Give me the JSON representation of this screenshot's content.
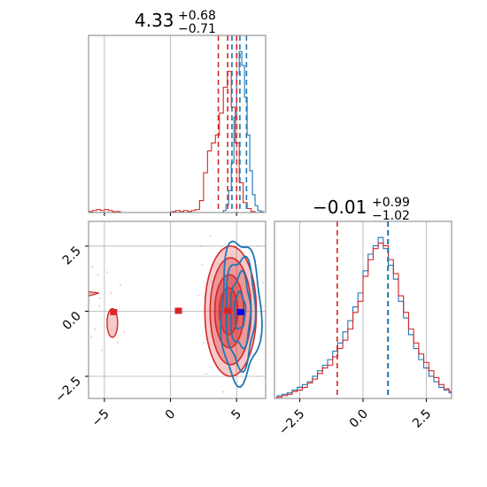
{
  "chart_data": {
    "type": "corner",
    "colors": {
      "red": "#d62728",
      "blue": "#1f77b4",
      "grid": "#b0b0b0",
      "axes": "#808080"
    },
    "panels": {
      "param0_hist": {
        "title": {
          "value": "4.33",
          "upper": "+0.68",
          "lower": "−0.71"
        },
        "xlim": [
          -6.2,
          7.2
        ],
        "grid_x": [
          -5,
          0,
          5
        ],
        "quantile_lines_red": [
          3.62,
          4.33,
          5.01
        ],
        "quantile_lines_blue": [
          4.65,
          5.25,
          5.75
        ],
        "red_bins": {
          "edges": [
            -6.2,
            -5.9,
            -5.6,
            -5.3,
            -5.0,
            -4.7,
            -4.4,
            -4.1,
            -3.8,
            -3.5,
            -3.2,
            -2.9,
            -2.6,
            -2.3,
            -2.0,
            -1.7,
            -1.4,
            -1.1,
            -0.8,
            -0.5,
            -0.2,
            0.1,
            0.4,
            0.7,
            1.0,
            1.3,
            1.6,
            1.9,
            2.2,
            2.5,
            2.8,
            3.1,
            3.4,
            3.7,
            4.0,
            4.3,
            4.6,
            4.9,
            5.2,
            5.5,
            5.8,
            6.1,
            6.4
          ],
          "counts": [
            1,
            2,
            3,
            2,
            3,
            2,
            1,
            1,
            0,
            0,
            0,
            0,
            0,
            0,
            0,
            0,
            0,
            0,
            0,
            0,
            0,
            1,
            2,
            1,
            2,
            1,
            2,
            3,
            12,
            40,
            62,
            70,
            78,
            100,
            126,
            142,
            106,
            70,
            30,
            10,
            4,
            1
          ]
        },
        "blue_bins": {
          "edges": [
            4.0,
            4.2,
            4.4,
            4.6,
            4.8,
            5.0,
            5.2,
            5.4,
            5.6,
            5.8,
            6.0,
            6.2,
            6.4,
            6.6,
            6.8,
            7.0
          ],
          "counts": [
            2,
            8,
            22,
            50,
            96,
            140,
            162,
            148,
            116,
            78,
            42,
            18,
            7,
            2,
            1
          ]
        }
      },
      "param1_hist": {
        "title": {
          "value": "−0.01",
          "upper": "+0.99",
          "lower": "−1.02"
        },
        "xlim": [
          -3.5,
          3.5
        ],
        "ticks": [
          -2.5,
          0.0,
          2.5
        ],
        "tick_labels": [
          "−2.5",
          "0.0",
          "2.5"
        ],
        "quantile_lines_red": [
          -1.02,
          0.98
        ],
        "quantile_lines_blue": [
          0.96
        ],
        "bin_edges_start": -3.4,
        "bin_width": 0.2,
        "red_counts": [
          1,
          2,
          3,
          5,
          6,
          8,
          11,
          14,
          18,
          22,
          24,
          30,
          36,
          42,
          50,
          62,
          70,
          88,
          100,
          108,
          112,
          110,
          100,
          90,
          74,
          62,
          50,
          40,
          32,
          26,
          20,
          15,
          10,
          7,
          5
        ],
        "blue_counts": [
          2,
          3,
          4,
          6,
          8,
          10,
          12,
          16,
          20,
          24,
          28,
          34,
          40,
          48,
          56,
          66,
          76,
          92,
          104,
          110,
          116,
          108,
          96,
          86,
          70,
          58,
          46,
          36,
          28,
          22,
          16,
          12,
          8,
          6,
          4
        ]
      },
      "scatter_2d": {
        "xlim": [
          -6.2,
          7.2
        ],
        "ylim": [
          -3.35,
          3.45
        ],
        "x_ticks": [
          -5,
          0,
          5
        ],
        "x_tick_labels": [
          "−5",
          "0",
          "5"
        ],
        "y_ticks": [
          -2.5,
          0.0,
          2.5
        ],
        "y_tick_labels": [
          "−2.5",
          "0.0",
          "2.5"
        ],
        "red_contours": [
          {
            "cx": 4.55,
            "cy": 0.0,
            "rx": 1.95,
            "ry": 2.5,
            "fill_opacity": 0.45
          },
          {
            "cx": 4.55,
            "cy": 0.0,
            "rx": 1.55,
            "ry": 2.05,
            "fill_opacity": 0.55
          },
          {
            "cx": 4.45,
            "cy": 0.0,
            "rx": 1.1,
            "ry": 1.4,
            "fill_opacity": 0.75
          },
          {
            "cx": 4.4,
            "cy": 0.0,
            "rx": 0.7,
            "ry": 0.9,
            "fill_opacity": 0.85
          }
        ],
        "red_island": {
          "cx": -4.4,
          "cy": -0.45,
          "rx": 0.4,
          "ry": 0.55
        },
        "red_sliver": {
          "x": -5.95,
          "y": 0.7
        },
        "blue_contours": [
          {
            "cx": 5.3,
            "cy": 0.0,
            "rx": 1.5,
            "ry": 2.7
          },
          {
            "cx": 5.3,
            "cy": 0.0,
            "rx": 1.1,
            "ry": 2.1
          },
          {
            "cx": 5.3,
            "cy": 0.0,
            "rx": 0.75,
            "ry": 1.4
          },
          {
            "cx": 5.25,
            "cy": 0.0,
            "rx": 0.4,
            "ry": 0.7
          }
        ],
        "red_markers": [
          {
            "x": -4.3,
            "y": -0.05
          },
          {
            "x": 0.6,
            "y": 0.0
          },
          {
            "x": 4.33,
            "y": 0.0
          }
        ],
        "blue_markers": [
          {
            "x": 5.3,
            "y": -0.05
          }
        ],
        "scatter_points": [
          [
            -5.9,
            1.7
          ],
          [
            -5.5,
            1.4
          ],
          [
            -5.3,
            0.5
          ],
          [
            -4.8,
            1.5
          ],
          [
            -5.7,
            -0.7
          ],
          [
            -3.8,
            1.0
          ],
          [
            -4.5,
            0.7
          ],
          [
            -5.2,
            -1.5
          ],
          [
            -3.5,
            -0.8
          ],
          [
            -5.4,
            0.2
          ],
          [
            -4.0,
            -1.2
          ],
          [
            -6.0,
            -1.0
          ],
          [
            2.4,
            1.8
          ],
          [
            2.7,
            -2.4
          ],
          [
            2.1,
            0.6
          ],
          [
            2.5,
            -1.2
          ],
          [
            6.6,
            2.5
          ],
          [
            6.8,
            -1.0
          ],
          [
            7.0,
            1.1
          ],
          [
            6.5,
            -2.5
          ],
          [
            3.0,
            2.9
          ],
          [
            4.0,
            -3.1
          ],
          [
            6.9,
            0.2
          ],
          [
            2.3,
            2.5
          ]
        ]
      }
    }
  }
}
